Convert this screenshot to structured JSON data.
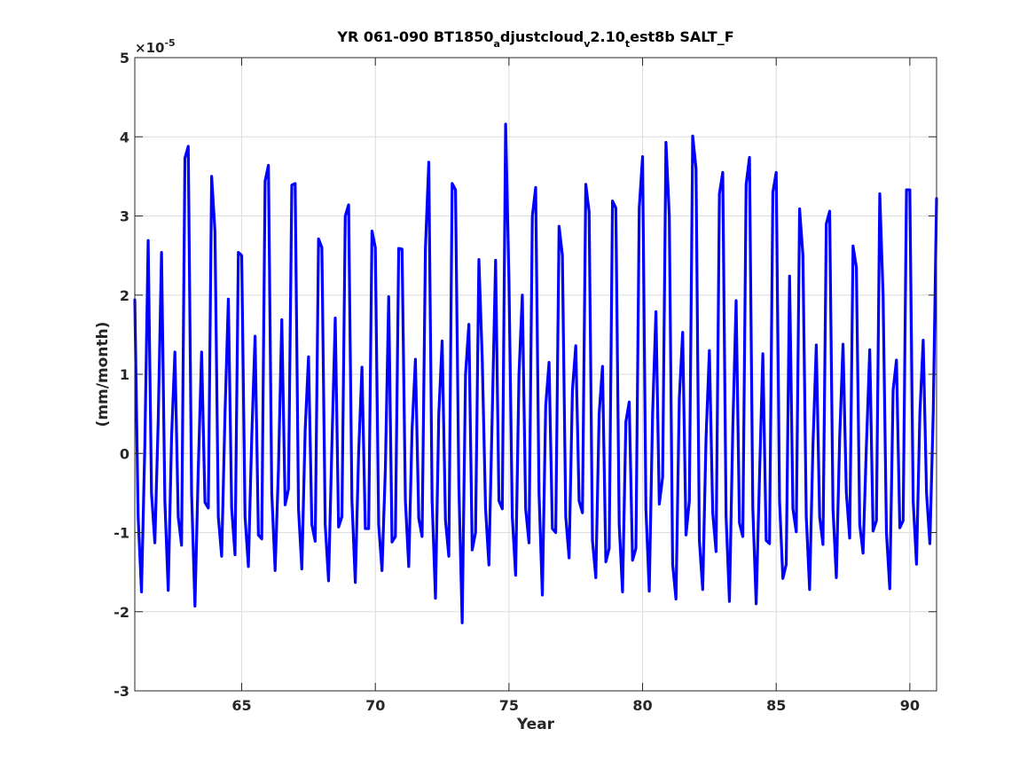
{
  "chart_data": {
    "type": "line",
    "title": "YR 061-090 BT1850",
    "title_parts": [
      {
        "text": "YR 061-090 BT1850",
        "sub": false
      },
      {
        "text": "a",
        "sub": true
      },
      {
        "text": "djustcloud",
        "sub": false
      },
      {
        "text": "v",
        "sub": true
      },
      {
        "text": "2.10",
        "sub": false
      },
      {
        "text": "t",
        "sub": true
      },
      {
        "text": "est8b SALT_F",
        "sub": false
      }
    ],
    "xlabel": "Year",
    "ylabel": "(mm/month)",
    "y_exponent_base": "×10",
    "y_exponent_power": "-5",
    "xlim": [
      61,
      91
    ],
    "ylim": [
      -3,
      5
    ],
    "xticks": [
      65,
      70,
      75,
      80,
      85,
      90
    ],
    "yticks": [
      -3,
      -2,
      -1,
      0,
      1,
      2,
      3,
      4,
      5
    ],
    "grid": true,
    "line_color": "#0000ff",
    "series": [
      {
        "values": [
          1.94,
          -0.8,
          -1.75,
          0.1,
          2.69,
          -0.5,
          -1.13,
          0.4,
          2.54,
          -0.6,
          -1.73,
          0.2,
          1.28,
          -0.8,
          -1.16,
          3.73,
          3.88,
          -0.5,
          -1.93,
          -0.2,
          1.28,
          -0.62,
          -0.69,
          3.5,
          2.8,
          -0.8,
          -1.3,
          0.5,
          1.95,
          -0.7,
          -1.28,
          2.54,
          2.5,
          -0.8,
          -1.43,
          0.2,
          1.48,
          -1.03,
          -1.08,
          3.44,
          3.64,
          -0.5,
          -1.48,
          -0.2,
          1.69,
          -0.65,
          -0.45,
          3.39,
          3.41,
          -0.7,
          -1.46,
          0.3,
          1.22,
          -0.9,
          -1.11,
          2.71,
          2.6,
          -0.9,
          -1.61,
          0.1,
          1.71,
          -0.93,
          -0.8,
          3.0,
          3.14,
          -0.6,
          -1.63,
          0.0,
          1.09,
          -0.95,
          -0.95,
          2.81,
          2.6,
          -0.9,
          -1.48,
          -0.2,
          1.98,
          -1.12,
          -1.05,
          2.59,
          2.58,
          -0.6,
          -1.43,
          0.3,
          1.19,
          -0.82,
          -1.05,
          2.6,
          3.68,
          -0.6,
          -1.83,
          0.5,
          1.42,
          -0.85,
          -1.3,
          3.41,
          3.33,
          -0.4,
          -2.14,
          1.0,
          1.63,
          -1.22,
          -1.0,
          2.45,
          1.2,
          -0.7,
          -1.41,
          0.5,
          2.44,
          -0.6,
          -0.7,
          4.16,
          2.2,
          -0.8,
          -1.54,
          1.0,
          2.0,
          -0.7,
          -1.13,
          3.0,
          3.36,
          -0.5,
          -1.79,
          0.6,
          1.15,
          -0.95,
          -1.0,
          2.87,
          2.5,
          -0.8,
          -1.32,
          0.8,
          1.36,
          -0.6,
          -0.75,
          3.4,
          3.05,
          -1.1,
          -1.57,
          0.5,
          1.1,
          -1.37,
          -1.2,
          3.19,
          3.1,
          -0.9,
          -1.75,
          0.4,
          0.65,
          -1.35,
          -1.2,
          3.1,
          3.75,
          -0.7,
          -1.74,
          0.5,
          1.79,
          -0.64,
          -0.3,
          3.93,
          3.0,
          -1.4,
          -1.84,
          0.7,
          1.53,
          -1.03,
          -0.6,
          4.01,
          3.6,
          -1.1,
          -1.72,
          0.2,
          1.3,
          -0.75,
          -1.24,
          3.28,
          3.55,
          -0.8,
          -1.87,
          0.3,
          1.93,
          -0.88,
          -1.05,
          3.4,
          3.74,
          -0.7,
          -1.9,
          -0.3,
          1.26,
          -1.1,
          -1.14,
          3.3,
          3.55,
          -0.6,
          -1.58,
          -1.4,
          2.24,
          -0.7,
          -0.99,
          3.09,
          2.5,
          -0.8,
          -1.72,
          0.1,
          1.37,
          -0.8,
          -1.15,
          2.9,
          3.06,
          -0.7,
          -1.57,
          0.2,
          1.38,
          -0.5,
          -1.07,
          2.62,
          2.35,
          -0.9,
          -1.26,
          0.1,
          1.31,
          -0.98,
          -0.85,
          3.28,
          2.0,
          -1.0,
          -1.71,
          0.8,
          1.18,
          -0.94,
          -0.85,
          3.33,
          3.33,
          -0.6,
          -1.4,
          0.5,
          1.43,
          -0.5,
          -1.14,
          0.5,
          3.22
        ]
      }
    ]
  }
}
